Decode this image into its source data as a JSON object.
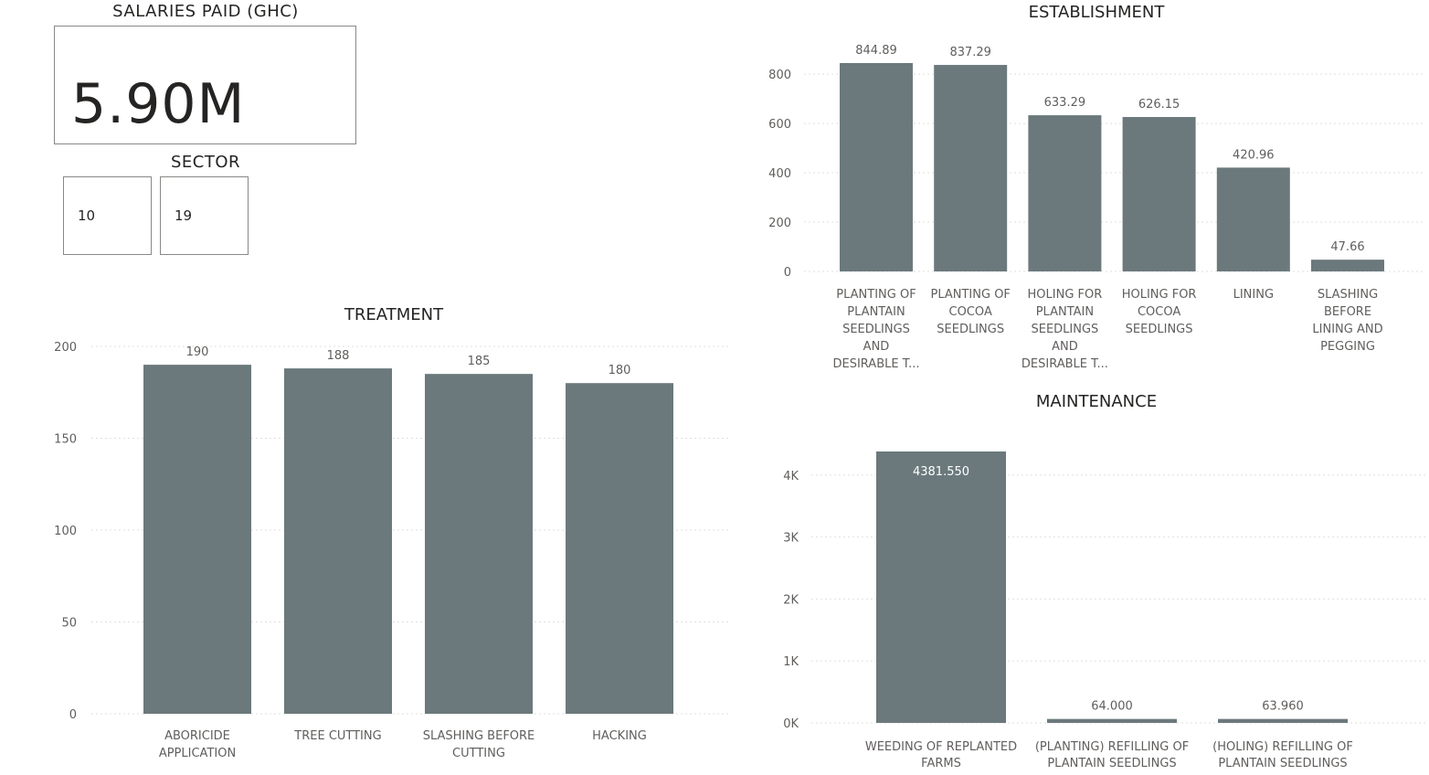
{
  "salaries": {
    "title": "SALARIES PAID (GHC)",
    "value": "5.90M"
  },
  "sector": {
    "title": "SECTOR",
    "options": [
      "10",
      "19"
    ]
  },
  "colors": {
    "bar": "#6b797c",
    "axis_text": "#605e5c",
    "grid": "#e1dfdd",
    "title": "#252423"
  },
  "chart_data": [
    {
      "id": "treatment",
      "type": "bar",
      "title": "TREATMENT",
      "categories": [
        [
          "ABORICIDE",
          "APPLICATION"
        ],
        [
          "TREE CUTTING"
        ],
        [
          "SLASHING BEFORE",
          "CUTTING"
        ],
        [
          "HACKING"
        ]
      ],
      "values": [
        190,
        188,
        185,
        180
      ],
      "value_labels": [
        "190",
        "188",
        "185",
        "180"
      ],
      "ylim": [
        0,
        200
      ],
      "yticks": [
        0,
        50,
        100,
        150,
        200
      ],
      "ytick_labels": [
        "0",
        "50",
        "100",
        "150",
        "200"
      ],
      "grid": true
    },
    {
      "id": "establishment",
      "type": "bar",
      "title": "ESTABLISHMENT",
      "categories": [
        [
          "PLANTING OF",
          "PLANTAIN",
          "SEEDLINGS",
          "AND",
          "DESIRABLE T..."
        ],
        [
          "PLANTING OF",
          "COCOA",
          "SEEDLINGS"
        ],
        [
          "HOLING FOR",
          "PLANTAIN",
          "SEEDLINGS",
          "AND",
          "DESIRABLE T..."
        ],
        [
          "HOLING FOR",
          "COCOA",
          "SEEDLINGS"
        ],
        [
          "LINING"
        ],
        [
          "SLASHING",
          "BEFORE",
          "LINING AND",
          "PEGGING"
        ]
      ],
      "values": [
        844.89,
        837.29,
        633.29,
        626.15,
        420.96,
        47.66
      ],
      "value_labels": [
        "844.89",
        "837.29",
        "633.29",
        "626.15",
        "420.96",
        "47.66"
      ],
      "ylim": [
        0,
        844.89
      ],
      "yticks": [
        0,
        200,
        400,
        600,
        800
      ],
      "ytick_labels": [
        "0",
        "200",
        "400",
        "600",
        "800"
      ],
      "grid": true
    },
    {
      "id": "maintenance",
      "type": "bar",
      "title": "MAINTENANCE",
      "categories": [
        [
          "WEEDING OF REPLANTED",
          "FARMS"
        ],
        [
          "(PLANTING) REFILLING OF",
          "PLANTAIN SEEDLINGS"
        ],
        [
          "(HOLING) REFILLING OF",
          "PLANTAIN SEEDLINGS"
        ]
      ],
      "values": [
        4381.55,
        64.0,
        63.96
      ],
      "value_labels": [
        "4381.550",
        "64.000",
        "63.960"
      ],
      "ylim": [
        0,
        4381.55
      ],
      "yticks": [
        0,
        1000,
        2000,
        3000,
        4000
      ],
      "ytick_labels": [
        "0K",
        "1K",
        "2K",
        "3K",
        "4K"
      ],
      "grid": true
    }
  ]
}
